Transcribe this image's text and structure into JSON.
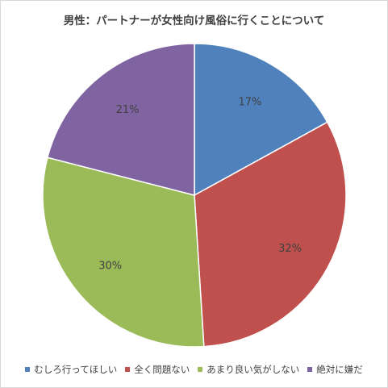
{
  "chart_data": {
    "type": "pie",
    "title": "男性：パートナーが女性向け風俗に行くことについて",
    "categories": [
      "むしろ行ってほしい",
      "全く問題ない",
      "あまり良い気がしない",
      "絶対に嫌だ"
    ],
    "values": [
      17,
      32,
      30,
      21
    ],
    "value_labels": [
      "17%",
      "32%",
      "30%",
      "21%"
    ],
    "colors": [
      "#4f81bd",
      "#c0504d",
      "#9bbb59",
      "#8064a2"
    ],
    "start_angle": "12 o'clock",
    "direction": "clockwise",
    "legend_position": "bottom"
  }
}
